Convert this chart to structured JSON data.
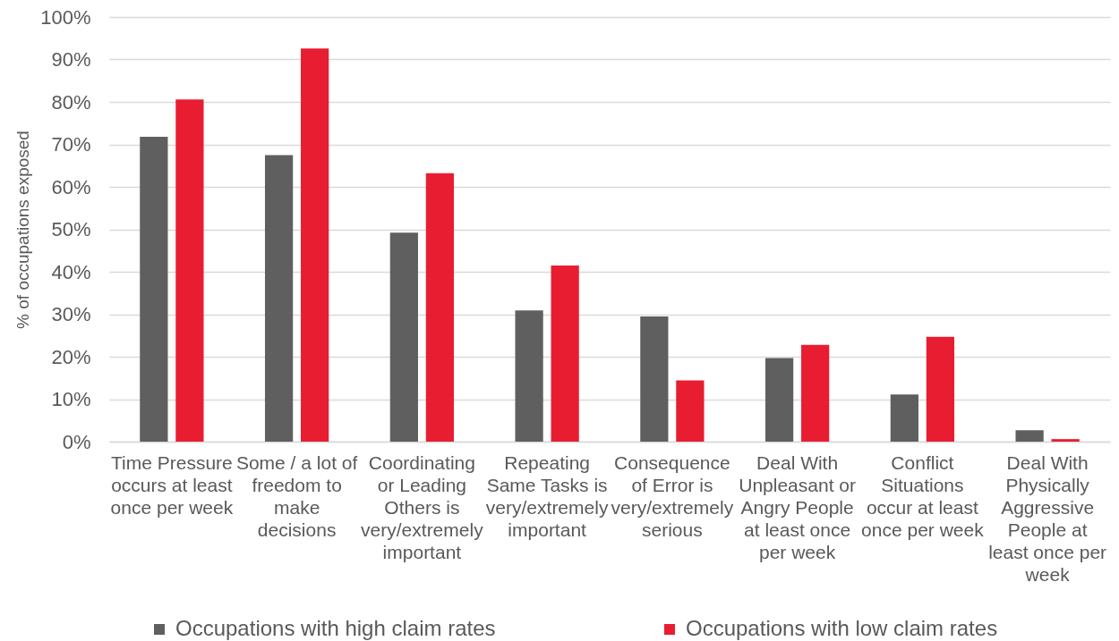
{
  "chart_data": {
    "type": "bar",
    "ylabel": "% of occupations exposed",
    "categories": [
      "Time Pressure occurs at least once per week",
      "Some / a lot of freedom to make decisions",
      "Coordinating or Leading Others is very/extremely important",
      "Repeating Same Tasks is very/extremely important",
      "Consequence of Error is very/extremely serious",
      "Deal With Unpleasant or Angry People at least once per week",
      "Conflict Situations occur at least once per week",
      "Deal With Physically Aggressive People at least once per week"
    ],
    "series": [
      {
        "name": "Occupations with high claim rates",
        "color": "#5f5f5f",
        "values": [
          71.8,
          67.5,
          49.2,
          30.9,
          29.5,
          19.7,
          11.1,
          2.7
        ]
      },
      {
        "name": "Occupations with low claim rates",
        "color": "#e81d31",
        "values": [
          80.6,
          92.6,
          63.2,
          41.5,
          14.4,
          22.8,
          24.7,
          0.6
        ]
      }
    ],
    "ylim": [
      0,
      100
    ],
    "yticks": [
      {
        "value": 0,
        "label": "0%"
      },
      {
        "value": 10,
        "label": "10%"
      },
      {
        "value": 20,
        "label": "20%"
      },
      {
        "value": 30,
        "label": "30%"
      },
      {
        "value": 40,
        "label": "40%"
      },
      {
        "value": 50,
        "label": "50%"
      },
      {
        "value": 60,
        "label": "60%"
      },
      {
        "value": 70,
        "label": "70%"
      },
      {
        "value": 80,
        "label": "80%"
      },
      {
        "value": 90,
        "label": "90%"
      },
      {
        "value": 100,
        "label": "100%"
      }
    ],
    "grid": "y",
    "legend": "bottom"
  }
}
